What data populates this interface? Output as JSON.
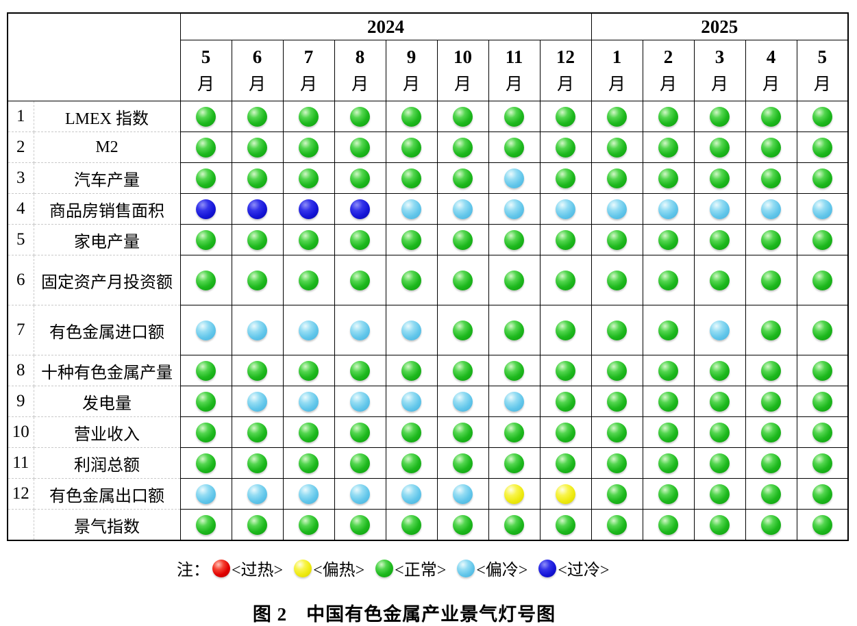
{
  "chart_data": {
    "type": "heatmap",
    "title": "图 2　中国有色金属产业景气灯号图",
    "note": "状态灯含义：R=过热, Y=偏热, G=正常, LB=偏冷, DB=过冷",
    "legend_position": "bottom",
    "x_groups": [
      {
        "label": "2024",
        "span": 8
      },
      {
        "label": "2025",
        "span": 5
      }
    ],
    "months": [
      {
        "num": "5",
        "unit": "月"
      },
      {
        "num": "6",
        "unit": "月"
      },
      {
        "num": "7",
        "unit": "月"
      },
      {
        "num": "8",
        "unit": "月"
      },
      {
        "num": "9",
        "unit": "月"
      },
      {
        "num": "10",
        "unit": "月"
      },
      {
        "num": "11",
        "unit": "月"
      },
      {
        "num": "12",
        "unit": "月"
      },
      {
        "num": "1",
        "unit": "月"
      },
      {
        "num": "2",
        "unit": "月"
      },
      {
        "num": "3",
        "unit": "月"
      },
      {
        "num": "4",
        "unit": "月"
      },
      {
        "num": "5",
        "unit": "月"
      }
    ],
    "rows": [
      {
        "num": "1",
        "label": "LMEX 指数",
        "tall": false,
        "lights": [
          "G",
          "G",
          "G",
          "G",
          "G",
          "G",
          "G",
          "G",
          "G",
          "G",
          "G",
          "G",
          "G"
        ]
      },
      {
        "num": "2",
        "label": "M2",
        "tall": false,
        "lights": [
          "G",
          "G",
          "G",
          "G",
          "G",
          "G",
          "G",
          "G",
          "G",
          "G",
          "G",
          "G",
          "G"
        ]
      },
      {
        "num": "3",
        "label": "汽车产量",
        "tall": false,
        "lights": [
          "G",
          "G",
          "G",
          "G",
          "G",
          "G",
          "LB",
          "G",
          "G",
          "G",
          "G",
          "G",
          "G"
        ]
      },
      {
        "num": "4",
        "label": "商品房销售面积",
        "tall": false,
        "lights": [
          "DB",
          "DB",
          "DB",
          "DB",
          "LB",
          "LB",
          "LB",
          "LB",
          "LB",
          "LB",
          "LB",
          "LB",
          "LB"
        ]
      },
      {
        "num": "5",
        "label": "家电产量",
        "tall": false,
        "lights": [
          "G",
          "G",
          "G",
          "G",
          "G",
          "G",
          "G",
          "G",
          "G",
          "G",
          "G",
          "G",
          "G"
        ]
      },
      {
        "num": "6",
        "label": "固定资产月投资额",
        "tall": true,
        "lights": [
          "G",
          "G",
          "G",
          "G",
          "G",
          "G",
          "G",
          "G",
          "G",
          "G",
          "G",
          "G",
          "G"
        ]
      },
      {
        "num": "7",
        "label": "有色金属进口额",
        "tall": true,
        "lights": [
          "LB",
          "LB",
          "LB",
          "LB",
          "LB",
          "G",
          "G",
          "G",
          "G",
          "G",
          "LB",
          "G",
          "G"
        ]
      },
      {
        "num": "8",
        "label": "十种有色金属产量",
        "tall": false,
        "lights": [
          "G",
          "G",
          "G",
          "G",
          "G",
          "G",
          "G",
          "G",
          "G",
          "G",
          "G",
          "G",
          "G"
        ]
      },
      {
        "num": "9",
        "label": "发电量",
        "tall": false,
        "lights": [
          "G",
          "LB",
          "LB",
          "LB",
          "LB",
          "LB",
          "LB",
          "G",
          "G",
          "G",
          "G",
          "G",
          "G"
        ]
      },
      {
        "num": "10",
        "label": "营业收入",
        "tall": false,
        "lights": [
          "G",
          "G",
          "G",
          "G",
          "G",
          "G",
          "G",
          "G",
          "G",
          "G",
          "G",
          "G",
          "G"
        ]
      },
      {
        "num": "11",
        "label": "利润总额",
        "tall": false,
        "lights": [
          "G",
          "G",
          "G",
          "G",
          "G",
          "G",
          "G",
          "G",
          "G",
          "G",
          "G",
          "G",
          "G"
        ]
      },
      {
        "num": "12",
        "label": "有色金属出口额",
        "tall": false,
        "lights": [
          "LB",
          "LB",
          "LB",
          "LB",
          "LB",
          "LB",
          "Y",
          "Y",
          "G",
          "G",
          "G",
          "G",
          "G"
        ]
      },
      {
        "num": "",
        "label": "景气指数",
        "tall": false,
        "lights": [
          "G",
          "G",
          "G",
          "G",
          "G",
          "G",
          "G",
          "G",
          "G",
          "G",
          "G",
          "G",
          "G"
        ]
      }
    ]
  },
  "legend": {
    "prefix": "注：",
    "items": [
      {
        "code": "R",
        "color": "red",
        "hex": "#e00000",
        "label": "<过热>"
      },
      {
        "code": "Y",
        "color": "yellow",
        "hex": "#eeea10",
        "label": "<偏热>"
      },
      {
        "code": "G",
        "color": "green",
        "hex": "#1db81d",
        "label": "<正常>"
      },
      {
        "code": "LB",
        "color": "lightblue",
        "hex": "#62c6ea",
        "label": "<偏冷>"
      },
      {
        "code": "DB",
        "color": "darkblue",
        "hex": "#1414d6",
        "label": "<过冷>"
      }
    ]
  },
  "caption": "图 2　中国有色金属产业景气灯号图"
}
